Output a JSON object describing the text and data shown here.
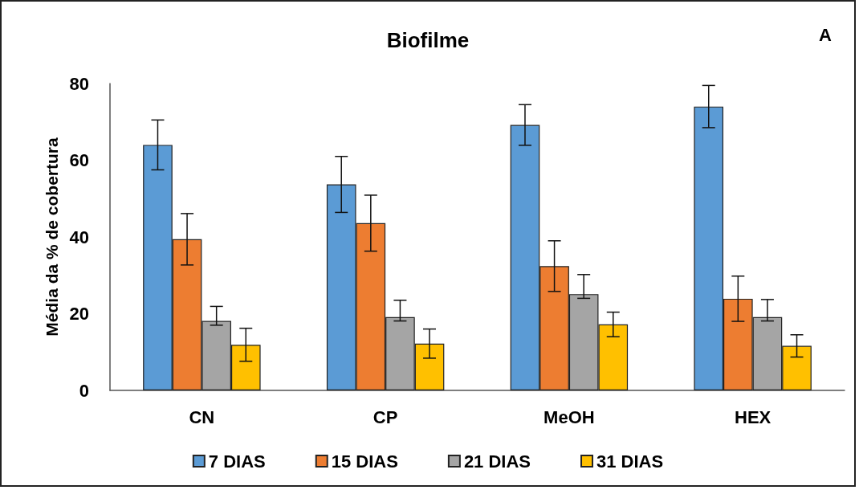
{
  "chart_data": {
    "type": "bar",
    "title": "Biofilme",
    "annotations": [
      "A"
    ],
    "ylabel": "Média da % de cobertura",
    "categories": [
      "CN",
      "CP",
      "MeOH",
      "HEX"
    ],
    "series": [
      {
        "name": "7 DIAS",
        "color": "#5b9bd5",
        "values": [
          64,
          53.7,
          69.2,
          74
        ],
        "errors": [
          6.5,
          7.3,
          5.3,
          5.5
        ]
      },
      {
        "name": "15 DIAS",
        "color": "#ed7d31",
        "values": [
          39.4,
          43.6,
          32.4,
          23.9
        ],
        "errors": [
          6.7,
          7.3,
          6.6,
          5.9
        ]
      },
      {
        "name": "21 DIAS",
        "color": "#a5a5a5",
        "values": [
          18.1,
          19.1,
          25.1,
          19.1
        ],
        "errors": [
          [
            17,
            21.9
          ],
          [
            18.1,
            23.5
          ],
          [
            24,
            30.2
          ],
          [
            18.1,
            23.7
          ]
        ]
      },
      {
        "name": "31 DIAS",
        "color": "#ffc000",
        "values": [
          11.9,
          12.2,
          17.2,
          11.6
        ],
        "errors": [
          4.3,
          3.8,
          3.2,
          2.9
        ]
      }
    ],
    "ylim": [
      0,
      80
    ],
    "yticks": [
      0,
      20,
      40,
      60,
      80
    ],
    "grid": false,
    "legend": "bottom"
  }
}
